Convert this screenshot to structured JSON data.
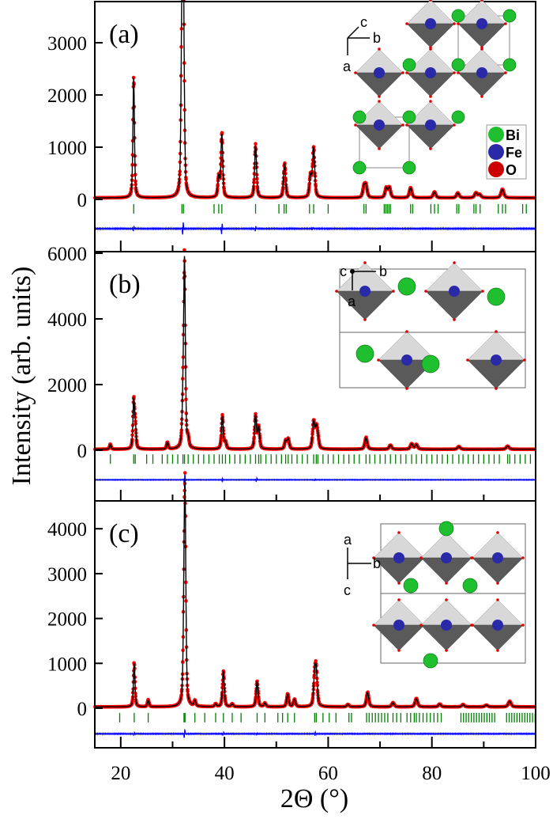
{
  "chart_data": {
    "type": "line",
    "xlabel": "2Θ (°)",
    "ylabel": "Intensity (arb. units)",
    "xlim": [
      15,
      100
    ],
    "xticks": [
      20,
      40,
      60,
      80,
      100
    ],
    "colors": {
      "observed": "#ff0000",
      "calculated": "#000000",
      "difference": "#0000ff",
      "bragg": "#008000"
    },
    "panels": [
      {
        "label": "(a)",
        "ylim": [
          -900,
          3800
        ],
        "yticks": [
          0,
          1000,
          2000,
          3000
        ],
        "bragg_offset": -180,
        "difference_offset": -560,
        "peaks": [
          [
            22.5,
            2300
          ],
          [
            31.8,
            3300
          ],
          [
            32.1,
            3500
          ],
          [
            38.9,
            380
          ],
          [
            39.5,
            1200
          ],
          [
            46.0,
            1000
          ],
          [
            51.6,
            650
          ],
          [
            56.6,
            400
          ],
          [
            57.2,
            930
          ],
          [
            66.9,
            200
          ],
          [
            67.3,
            220
          ],
          [
            71.2,
            180
          ],
          [
            71.8,
            190
          ],
          [
            75.9,
            190
          ],
          [
            80.5,
            110
          ],
          [
            85.0,
            90
          ],
          [
            88.5,
            90
          ],
          [
            89.2,
            60
          ],
          [
            93.6,
            160
          ]
        ],
        "bragg": [
          22.5,
          31.8,
          32.1,
          38.0,
          38.9,
          39.5,
          46.0,
          50.5,
          51.5,
          51.9,
          56.4,
          57.2,
          60.0,
          66.9,
          67.3,
          70.8,
          71.1,
          71.4,
          71.7,
          72.0,
          75.9,
          76.3,
          79.8,
          80.5,
          81.2,
          84.8,
          85.2,
          88.1,
          88.5,
          89.3,
          92.8,
          93.6,
          94.2,
          97.5,
          98.2
        ],
        "difference_spikes": [
          [
            22.5,
            60
          ],
          [
            32.0,
            150
          ],
          [
            39.5,
            130
          ],
          [
            46.0,
            60
          ],
          [
            57.0,
            30
          ]
        ],
        "inset": {
          "axes": [
            "c",
            "b",
            "a"
          ],
          "legend": [
            "Bi",
            "Fe",
            "O"
          ]
        }
      },
      {
        "label": "(b)",
        "ylim": [
          -1400,
          6000
        ],
        "yticks": [
          0,
          2000,
          4000,
          6000
        ],
        "bragg_offset": -270,
        "difference_offset": -900,
        "peaks": [
          [
            18.0,
            150
          ],
          [
            22.5,
            1450
          ],
          [
            22.8,
            700
          ],
          [
            29.0,
            200
          ],
          [
            32.0,
            1100
          ],
          [
            32.3,
            5600
          ],
          [
            33.0,
            250
          ],
          [
            39.6,
            1000
          ],
          [
            40.2,
            200
          ],
          [
            46.0,
            1000
          ],
          [
            46.6,
            650
          ],
          [
            51.8,
            250
          ],
          [
            52.3,
            300
          ],
          [
            57.2,
            800
          ],
          [
            57.7,
            550
          ],
          [
            58.0,
            300
          ],
          [
            67.3,
            350
          ],
          [
            72.0,
            120
          ],
          [
            76.1,
            160
          ],
          [
            77.0,
            140
          ],
          [
            85.2,
            80
          ],
          [
            94.6,
            90
          ]
        ],
        "bragg": [
          18.0,
          22.5,
          22.8,
          25.0,
          26.2,
          28.0,
          29.0,
          30.0,
          31.0,
          32.0,
          32.3,
          33.0,
          34.0,
          35.0,
          36.0,
          37.0,
          38.0,
          39.0,
          39.6,
          40.2,
          41.0,
          42.0,
          43.0,
          44.0,
          45.0,
          46.0,
          46.6,
          47.0,
          48.0,
          49.0,
          50.0,
          51.0,
          51.8,
          52.3,
          53.0,
          54.0,
          55.0,
          56.0,
          57.2,
          57.7,
          58.0,
          59.0,
          60.0,
          61.0,
          62.0,
          63.0,
          64.0,
          65.0,
          66.0,
          67.3,
          68.0,
          69.0,
          70.0,
          71.0,
          72.0,
          73.0,
          74.0,
          75.0,
          76.1,
          77.0,
          78.0,
          79.0,
          80.0,
          81.0,
          82.0,
          83.0,
          84.0,
          85.2,
          86.0,
          87.0,
          88.0,
          89.0,
          90.0,
          91.0,
          92.0,
          93.0,
          94.6,
          95.0,
          96.0,
          97.0,
          98.0,
          99.0
        ],
        "difference_spikes": [
          [
            32.3,
            250
          ],
          [
            39.6,
            60
          ],
          [
            46.2,
            70
          ],
          [
            57.4,
            40
          ]
        ],
        "inset": {
          "axes": [
            "c",
            "b",
            "a"
          ]
        }
      },
      {
        "label": "(c)",
        "ylim": [
          -900,
          4600
        ],
        "yticks": [
          0,
          1000,
          2000,
          3000,
          4000
        ],
        "bragg_offset": -210,
        "difference_offset": -570,
        "peaks": [
          [
            22.6,
            980
          ],
          [
            25.3,
            150
          ],
          [
            32.2,
            1500
          ],
          [
            32.4,
            4300
          ],
          [
            34.3,
            120
          ],
          [
            38.3,
            60
          ],
          [
            39.8,
            780
          ],
          [
            41.5,
            60
          ],
          [
            46.3,
            560
          ],
          [
            47.8,
            80
          ],
          [
            52.2,
            280
          ],
          [
            53.5,
            160
          ],
          [
            57.4,
            600
          ],
          [
            57.7,
            700
          ],
          [
            63.8,
            50
          ],
          [
            67.6,
            320
          ],
          [
            72.5,
            90
          ],
          [
            77.0,
            180
          ],
          [
            81.5,
            60
          ],
          [
            86.0,
            50
          ],
          [
            90.5,
            40
          ],
          [
            95.0,
            120
          ]
        ],
        "bragg": [
          19.8,
          22.6,
          25.3,
          32.2,
          32.4,
          34.3,
          36.2,
          38.3,
          39.8,
          41.5,
          43.2,
          46.3,
          47.8,
          50.3,
          51.2,
          52.2,
          53.5,
          57.4,
          57.7,
          59.0,
          60.2,
          61.5,
          64.0,
          64.5,
          67.4,
          67.9,
          68.5,
          69.1,
          69.7,
          70.3,
          70.9,
          71.5,
          72.5,
          73.2,
          74.0,
          75.2,
          75.9,
          76.6,
          77.0,
          77.6,
          78.3,
          79.0,
          79.7,
          80.4,
          81.1,
          81.8,
          85.6,
          86.1,
          86.6,
          87.1,
          87.6,
          88.1,
          88.6,
          89.1,
          89.6,
          90.1,
          90.6,
          91.1,
          91.6,
          92.1,
          94.4,
          94.9,
          95.4,
          95.9,
          96.4,
          96.9,
          97.4,
          97.9,
          98.4,
          98.9,
          99.4,
          99.9
        ],
        "difference_spikes": [
          [
            22.6,
            40
          ],
          [
            32.3,
            120
          ],
          [
            39.8,
            40
          ],
          [
            46.3,
            30
          ],
          [
            57.5,
            50
          ]
        ],
        "inset": {
          "axes": [
            "a",
            "b",
            "c"
          ]
        }
      }
    ]
  }
}
